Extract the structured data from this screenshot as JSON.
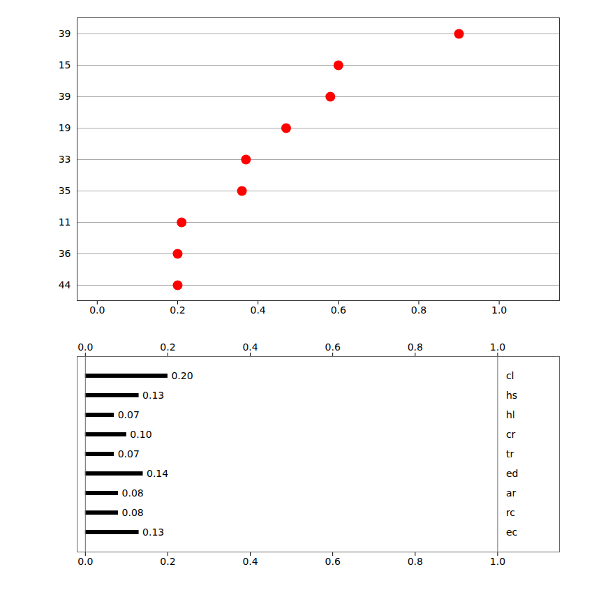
{
  "chart_data": [
    {
      "type": "dot",
      "orientation": "horizontal",
      "categories": [
        "39",
        "15",
        "39",
        "19",
        "33",
        "35",
        "11",
        "36",
        "44"
      ],
      "values": [
        0.9,
        0.6,
        0.58,
        0.47,
        0.37,
        0.36,
        0.21,
        0.2,
        0.2
      ],
      "color": "#ff0000",
      "grid": true,
      "xlim": [
        -0.05,
        1.15
      ],
      "xticks": [
        {
          "value": 0.0,
          "label": "0.0"
        },
        0.2,
        0.4,
        0.6,
        0.8,
        {
          "value": 1.0,
          "label": "1.0"
        }
      ]
    },
    {
      "type": "bar",
      "orientation": "horizontal",
      "categories": [
        "cl",
        "hs",
        "hl",
        "cr",
        "tr",
        "ed",
        "ar",
        "rc",
        "ec"
      ],
      "values": [
        0.2,
        0.13,
        0.07,
        0.1,
        0.07,
        0.14,
        0.08,
        0.08,
        0.13
      ],
      "value_labels": [
        "0.20",
        "0.13",
        "0.07",
        "0.10",
        "0.07",
        "0.14",
        "0.08",
        "0.08",
        "0.13"
      ],
      "data_labels": true,
      "color": "#000000",
      "grid": false,
      "vlines": [
        0.0,
        1.0
      ],
      "xlim": [
        -0.02,
        1.15
      ],
      "xticks": [
        {
          "value": 0.0,
          "label": "0.0"
        },
        0.2,
        0.4,
        0.6,
        0.8,
        {
          "value": 1.0,
          "label": "1.0"
        }
      ]
    }
  ]
}
